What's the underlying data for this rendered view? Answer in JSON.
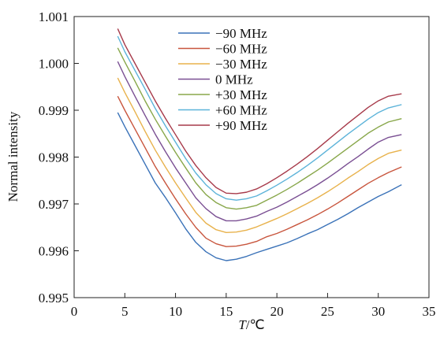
{
  "chart_data": {
    "type": "line",
    "title": "",
    "xlabel_italic": "T",
    "xlabel_rest": "/℃",
    "ylabel": "Normal intensity",
    "xlim": [
      0,
      35
    ],
    "ylim": [
      0.995,
      1.001
    ],
    "xticks": [
      "0",
      "5",
      "10",
      "15",
      "20",
      "25",
      "30",
      "35"
    ],
    "xtick_values": [
      0,
      5,
      10,
      15,
      20,
      25,
      30,
      35
    ],
    "yticks": [
      "0.995",
      "0.996",
      "0.997",
      "0.998",
      "0.999",
      "1.000",
      "1.001"
    ],
    "ytick_values": [
      0.995,
      0.996,
      0.997,
      0.998,
      0.999,
      1.0,
      1.001
    ],
    "grid": false,
    "legend_position": "top-center",
    "x": [
      4.3,
      5,
      6,
      7,
      8,
      9,
      10,
      11,
      12,
      13,
      14,
      15,
      16,
      17,
      18,
      19,
      20,
      21,
      22,
      23,
      24,
      25,
      26,
      27,
      28,
      29,
      30,
      31,
      32.3
    ],
    "series": [
      {
        "name": "−90 MHz",
        "color": "#3a72b8",
        "values": [
          0.99895,
          0.99865,
          0.99825,
          0.99785,
          0.99745,
          0.99714,
          0.99681,
          0.99647,
          0.99618,
          0.99598,
          0.99585,
          0.99579,
          0.99582,
          0.99588,
          0.99596,
          0.99603,
          0.9961,
          0.99617,
          0.99626,
          0.99636,
          0.99645,
          0.99656,
          0.99667,
          0.99679,
          0.99692,
          0.99704,
          0.99716,
          0.99726,
          0.99741
        ]
      },
      {
        "name": "−60 MHz",
        "color": "#c8553d",
        "values": [
          0.9993,
          0.999,
          0.9986,
          0.9982,
          0.9978,
          0.99745,
          0.99711,
          0.99679,
          0.9965,
          0.99627,
          0.99615,
          0.99609,
          0.9961,
          0.99614,
          0.9962,
          0.9963,
          0.99637,
          0.99646,
          0.99656,
          0.99666,
          0.99677,
          0.99689,
          0.99702,
          0.99716,
          0.9973,
          0.99744,
          0.99756,
          0.99767,
          0.99779
        ]
      },
      {
        "name": "−30 MHz",
        "color": "#e8b24c",
        "values": [
          0.99969,
          0.99938,
          0.99897,
          0.99855,
          0.99815,
          0.99779,
          0.99745,
          0.99713,
          0.99682,
          0.99659,
          0.99645,
          0.99639,
          0.9964,
          0.99644,
          0.99651,
          0.9966,
          0.99669,
          0.99679,
          0.9969,
          0.99701,
          0.99713,
          0.99726,
          0.9974,
          0.99755,
          0.99769,
          0.99784,
          0.99797,
          0.99808,
          0.99815
        ]
      },
      {
        "name": "0 MHz",
        "color": "#7a4f93",
        "values": [
          1.00004,
          0.99972,
          0.9993,
          0.99889,
          0.99849,
          0.99812,
          0.99777,
          0.99745,
          0.99713,
          0.9969,
          0.99673,
          0.99664,
          0.99664,
          0.99668,
          0.99674,
          0.99684,
          0.99693,
          0.99704,
          0.99716,
          0.99728,
          0.99741,
          0.99755,
          0.9977,
          0.99786,
          0.99801,
          0.99817,
          0.99832,
          0.99842,
          0.99848
        ]
      },
      {
        "name": "+30 MHz",
        "color": "#88a74a",
        "values": [
          1.00033,
          1.00003,
          0.99962,
          0.9992,
          0.99881,
          0.99845,
          0.9981,
          0.99777,
          0.99745,
          0.9972,
          0.99703,
          0.99692,
          0.99689,
          0.99692,
          0.99697,
          0.99708,
          0.99719,
          0.99731,
          0.99744,
          0.99758,
          0.99772,
          0.99787,
          0.99803,
          0.99819,
          0.99835,
          0.99851,
          0.99864,
          0.99875,
          0.99882
        ]
      },
      {
        "name": "+60 MHz",
        "color": "#5cb3d9",
        "values": [
          1.00058,
          1.00025,
          0.99985,
          0.99945,
          0.99904,
          0.99867,
          0.99832,
          0.99797,
          0.99766,
          0.99741,
          0.99722,
          0.99711,
          0.99708,
          0.99711,
          0.99717,
          0.99728,
          0.9974,
          0.99753,
          0.99767,
          0.99782,
          0.99798,
          0.99815,
          0.99832,
          0.99849,
          0.99865,
          0.99881,
          0.99895,
          0.99905,
          0.99912
        ]
      },
      {
        "name": "+90 MHz",
        "color": "#a73a4a",
        "values": [
          1.00074,
          1.0004,
          1.0,
          0.9996,
          0.9992,
          0.99883,
          0.99848,
          0.99813,
          0.99782,
          0.99756,
          0.99735,
          0.99723,
          0.99722,
          0.99725,
          0.99732,
          0.99743,
          0.99756,
          0.9977,
          0.99785,
          0.99801,
          0.99818,
          0.99836,
          0.99854,
          0.99872,
          0.99889,
          0.99906,
          0.9992,
          0.9993,
          0.99935
        ]
      }
    ]
  }
}
